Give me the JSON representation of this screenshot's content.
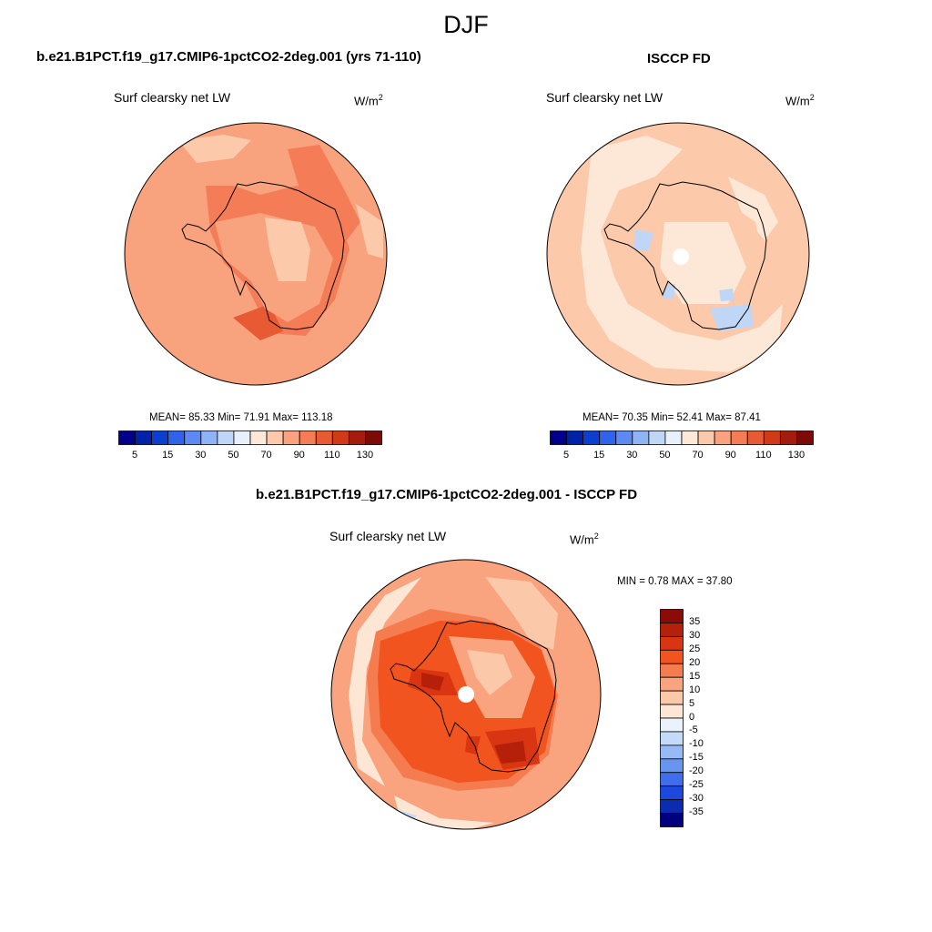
{
  "season": "DJF",
  "units_base": "W/m",
  "units_exp": "2",
  "panels": [
    {
      "title": "b.e21.B1PCT.f19_g17.CMIP6-1pctCO2-2deg.001 (yrs 71-110)",
      "subtitle": "Surf clearsky net LW",
      "stats": "MEAN=  85.33  Min=  71.91  Max= 113.18"
    },
    {
      "title": "ISCCP FD",
      "subtitle": "Surf clearsky net LW",
      "stats": "MEAN=  70.35  Min=  52.41  Max=  87.41"
    },
    {
      "title": "b.e21.B1PCT.f19_g17.CMIP6-1pctCO2-2deg.001 - ISCCP FD",
      "subtitle": "Surf clearsky net LW",
      "stats": "MIN =   0.78 MAX =  37.80"
    }
  ],
  "chart_data": [
    {
      "type": "heatmap",
      "projection": "south-polar-stereographic",
      "title": "b.e21.B1PCT.f19_g17.CMIP6-1pctCO2-2deg.001 (yrs 71-110)",
      "variable": "Surf clearsky net LW",
      "units": "W/m2",
      "mean": 85.33,
      "min": 71.91,
      "max": 113.18,
      "colorbar": {
        "orientation": "horizontal",
        "levels": [
          5,
          10,
          15,
          20,
          30,
          40,
          50,
          60,
          70,
          80,
          90,
          100,
          110,
          120,
          130
        ],
        "tick_labels": [
          "5",
          "15",
          "30",
          "50",
          "70",
          "90",
          "110",
          "130"
        ],
        "colors": [
          "#00008b",
          "#0022a8",
          "#0a3fd0",
          "#2e63ea",
          "#5b8bf2",
          "#8fb4f6",
          "#bfd6f7",
          "#e8f1fb",
          "#fde8d7",
          "#fcc9aa",
          "#f9a27e",
          "#f47d58",
          "#e85a34",
          "#d03a18",
          "#a31c0c",
          "#7a0b06"
        ]
      }
    },
    {
      "type": "heatmap",
      "projection": "south-polar-stereographic",
      "title": "ISCCP FD",
      "variable": "Surf clearsky net LW",
      "units": "W/m2",
      "mean": 70.35,
      "min": 52.41,
      "max": 87.41,
      "colorbar": {
        "orientation": "horizontal",
        "levels": [
          5,
          10,
          15,
          20,
          30,
          40,
          50,
          60,
          70,
          80,
          90,
          100,
          110,
          120,
          130
        ],
        "tick_labels": [
          "5",
          "15",
          "30",
          "50",
          "70",
          "90",
          "110",
          "130"
        ],
        "colors": [
          "#00008b",
          "#0022a8",
          "#0a3fd0",
          "#2e63ea",
          "#5b8bf2",
          "#8fb4f6",
          "#bfd6f7",
          "#e8f1fb",
          "#fde8d7",
          "#fcc9aa",
          "#f9a27e",
          "#f47d58",
          "#e85a34",
          "#d03a18",
          "#a31c0c",
          "#7a0b06"
        ]
      }
    },
    {
      "type": "heatmap",
      "projection": "south-polar-stereographic",
      "title": "b.e21.B1PCT.f19_g17.CMIP6-1pctCO2-2deg.001 - ISCCP FD",
      "variable": "Surf clearsky net LW",
      "units": "W/m2",
      "min": 0.78,
      "max": 37.8,
      "colorbar": {
        "orientation": "vertical",
        "tick_labels": [
          "35",
          "30",
          "25",
          "20",
          "15",
          "10",
          "5",
          "0",
          "-5",
          "-10",
          "-15",
          "-20",
          "-25",
          "-30",
          "-35"
        ],
        "colors": [
          "#8b0c07",
          "#b5200b",
          "#d93512",
          "#f2541f",
          "#f47c4f",
          "#f9a37f",
          "#fcc8aa",
          "#fde6d4",
          "#eaf2fb",
          "#c3dbf8",
          "#97baf5",
          "#6895ef",
          "#3f6deb",
          "#1c48dd",
          "#0b2cb0",
          "#000080"
        ]
      }
    }
  ]
}
